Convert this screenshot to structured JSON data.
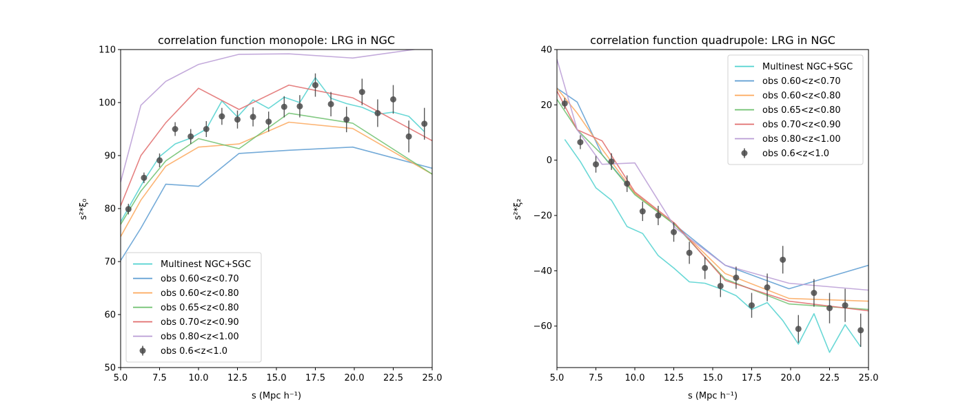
{
  "chart_data": [
    {
      "type": "line",
      "title": "correlation function monopole: LRG in NGC",
      "xlabel": "s (Mpc h⁻¹)",
      "ylabel": "s²*ξ₀",
      "xlim": [
        5.0,
        25.0
      ],
      "ylim": [
        50,
        110
      ],
      "xticks": [
        "5.0",
        "7.5",
        "10.0",
        "12.5",
        "15.0",
        "17.5",
        "20.0",
        "22.5",
        "25.0"
      ],
      "yticks": [
        "50",
        "60",
        "70",
        "80",
        "90",
        "100",
        "110"
      ],
      "legend_position": "lower-left",
      "grid": false,
      "series": [
        {
          "name": "Multinest NGC+SGC",
          "color": "#4fd1cf",
          "x": [
            5.0,
            6.5,
            7.5,
            8.5,
            9.5,
            10.5,
            11.5,
            12.5,
            13.5,
            14.5,
            15.5,
            16.5,
            17.5,
            18.5,
            19.5,
            20.5,
            21.5,
            22.5,
            23.5,
            24.5
          ],
          "y": [
            77.5,
            85.3,
            89.8,
            92.2,
            93.3,
            95.0,
            100.3,
            97.3,
            100.5,
            98.9,
            101.0,
            100.0,
            104.7,
            100.8,
            99.8,
            99.1,
            97.8,
            98.2,
            97.4,
            94.5
          ]
        },
        {
          "name": "obs 0.60<z<0.70",
          "color": "#5b9bd1",
          "x": [
            5.0,
            6.3,
            7.9,
            10.0,
            12.6,
            15.8,
            19.9,
            25.0
          ],
          "y": [
            70.2,
            76.3,
            84.6,
            84.2,
            90.4,
            91.0,
            91.6,
            87.6
          ]
        },
        {
          "name": "obs 0.60<z<0.80",
          "color": "#fca75a",
          "x": [
            5.0,
            6.3,
            7.9,
            10.0,
            12.6,
            15.8,
            19.9,
            25.0
          ],
          "y": [
            74.7,
            81.6,
            88.0,
            91.6,
            92.2,
            96.3,
            95.1,
            86.5
          ]
        },
        {
          "name": "obs 0.65<z<0.80",
          "color": "#6cbf6c",
          "x": [
            5.0,
            6.3,
            7.9,
            10.0,
            12.6,
            15.8,
            19.9,
            25.0
          ],
          "y": [
            77.0,
            83.3,
            89.0,
            93.2,
            91.3,
            98.0,
            96.1,
            86.5
          ]
        },
        {
          "name": "obs 0.70<z<0.90",
          "color": "#e06b6b",
          "x": [
            5.0,
            6.3,
            7.9,
            10.0,
            12.6,
            15.8,
            19.9,
            25.0
          ],
          "y": [
            80.5,
            90.0,
            96.2,
            102.7,
            98.7,
            103.3,
            100.9,
            92.8
          ]
        },
        {
          "name": "obs 0.80<z<1.00",
          "color": "#b99bd5",
          "x": [
            5.0,
            6.3,
            7.9,
            10.0,
            12.6,
            15.8,
            19.9,
            25.0
          ],
          "y": [
            85.0,
            99.5,
            104.0,
            107.2,
            109.1,
            109.2,
            108.4,
            110.5
          ]
        }
      ],
      "errorbar_series": {
        "name": "obs 0.6<z<1.0",
        "color": "#555555",
        "x": [
          5.5,
          6.5,
          7.5,
          8.5,
          9.5,
          10.5,
          11.5,
          12.5,
          13.5,
          14.5,
          15.5,
          16.5,
          17.5,
          18.5,
          19.5,
          20.5,
          21.5,
          22.5,
          23.5,
          24.5
        ],
        "y": [
          79.9,
          85.8,
          89.1,
          95.0,
          93.6,
          95.0,
          97.4,
          96.8,
          97.3,
          96.4,
          99.2,
          99.3,
          103.3,
          99.7,
          96.8,
          102.0,
          98.0,
          100.6,
          93.6,
          96.0
        ],
        "err": [
          1.0,
          1.0,
          1.3,
          1.3,
          1.4,
          1.5,
          1.6,
          1.7,
          1.8,
          1.9,
          2.0,
          2.1,
          2.2,
          2.3,
          2.4,
          2.5,
          2.6,
          2.7,
          3.0,
          3.0
        ]
      }
    },
    {
      "type": "line",
      "title": "correlation function quadrupole: LRG in NGC",
      "xlabel": "s (Mpc h⁻¹)",
      "ylabel": "s²*ξ₂",
      "xlim": [
        5.0,
        25.0
      ],
      "ylim": [
        -75,
        40
      ],
      "xticks": [
        "5.0",
        "7.5",
        "10.0",
        "12.5",
        "15.0",
        "17.5",
        "20.0",
        "22.5",
        "25.0"
      ],
      "ytick_values": [
        -60,
        -40,
        -20,
        0,
        20,
        40
      ],
      "yticks": [
        "−60",
        "−40",
        "−20",
        "0",
        "20",
        "40"
      ],
      "legend_position": "upper-right",
      "grid": false,
      "series": [
        {
          "name": "Multinest NGC+SGC",
          "color": "#4fd1cf",
          "x": [
            5.5,
            6.5,
            7.5,
            8.5,
            9.5,
            10.5,
            11.5,
            12.5,
            13.5,
            14.5,
            15.5,
            16.5,
            17.5,
            18.5,
            19.5,
            20.5,
            21.5,
            22.5,
            23.5,
            24.5
          ],
          "y": [
            7.5,
            -0.5,
            -10.0,
            -14.5,
            -24.0,
            -26.5,
            -34.5,
            -39.0,
            -44.0,
            -44.5,
            -46.5,
            -49.0,
            -54.0,
            -51.5,
            -58.0,
            -66.5,
            -55.5,
            -69.5,
            -59.5,
            -67.5
          ]
        },
        {
          "name": "obs 0.60<z<0.70",
          "color": "#5b9bd1",
          "x": [
            5.0,
            6.3,
            7.9,
            10.0,
            12.6,
            15.8,
            19.9,
            25.0
          ],
          "y": [
            26.0,
            21.0,
            2.0,
            -12.0,
            -23.5,
            -38.0,
            -46.5,
            -38.0
          ]
        },
        {
          "name": "obs 0.60<z<0.80",
          "color": "#fca75a",
          "x": [
            5.0,
            6.3,
            7.9,
            10.0,
            12.6,
            15.8,
            19.9,
            25.0
          ],
          "y": [
            26.0,
            17.0,
            4.0,
            -12.0,
            -23.5,
            -41.0,
            -50.0,
            -51.0
          ]
        },
        {
          "name": "obs 0.65<z<0.80",
          "color": "#6cbf6c",
          "x": [
            5.0,
            6.3,
            7.9,
            10.0,
            12.6,
            15.8,
            19.9,
            25.0
          ],
          "y": [
            22.0,
            11.0,
            2.0,
            -12.5,
            -23.5,
            -43.0,
            -52.0,
            -54.0
          ]
        },
        {
          "name": "obs 0.70<z<0.90",
          "color": "#e06b6b",
          "x": [
            5.0,
            6.3,
            7.9,
            10.0,
            12.6,
            15.8,
            19.9,
            25.0
          ],
          "y": [
            25.0,
            11.0,
            7.0,
            -11.5,
            -23.0,
            -43.5,
            -51.0,
            -54.5
          ]
        },
        {
          "name": "obs 0.80<z<1.00",
          "color": "#b99bd5",
          "x": [
            5.0,
            6.3,
            7.9,
            10.0,
            12.6,
            15.8,
            19.9,
            25.0
          ],
          "y": [
            36.5,
            11.0,
            -1.5,
            -1.0,
            -24.5,
            -38.0,
            -44.5,
            -47.0
          ]
        }
      ],
      "errorbar_series": {
        "name": "obs 0.6<z<1.0",
        "color": "#555555",
        "x": [
          5.5,
          6.5,
          7.5,
          8.5,
          9.5,
          10.5,
          11.5,
          12.5,
          13.5,
          14.5,
          15.5,
          16.5,
          17.5,
          18.5,
          19.5,
          20.5,
          21.5,
          22.5,
          23.5,
          24.5
        ],
        "y": [
          20.5,
          6.5,
          -1.5,
          -0.5,
          -8.5,
          -18.5,
          -20.0,
          -26.0,
          -33.5,
          -39.0,
          -45.5,
          -42.5,
          -52.5,
          -46.0,
          -36.0,
          -61.0,
          -48.0,
          -53.5,
          -52.5,
          -61.5
        ],
        "err": [
          2.0,
          2.5,
          3.0,
          3.0,
          3.0,
          3.5,
          3.5,
          3.5,
          4.0,
          4.0,
          4.0,
          4.0,
          4.5,
          5.0,
          5.0,
          5.0,
          5.0,
          5.5,
          6.0,
          6.0
        ]
      }
    }
  ]
}
